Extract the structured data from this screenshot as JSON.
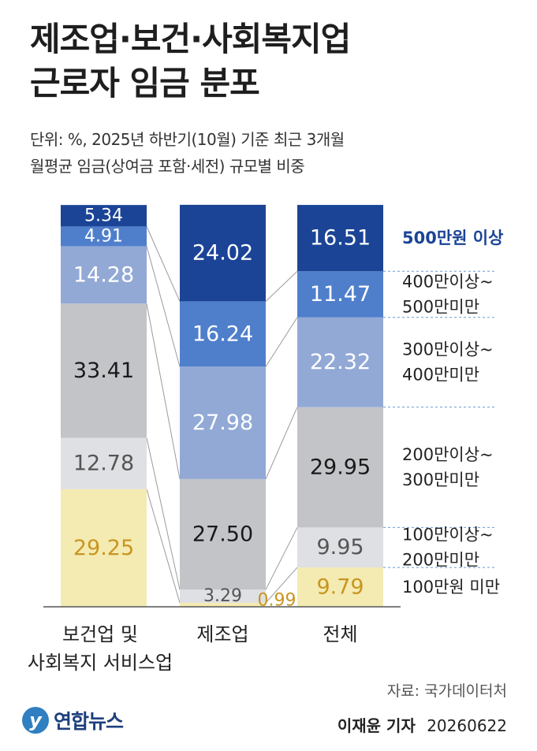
{
  "header": {
    "title_line1": "제조업·보건·사회복지업",
    "title_line2": "근로자 임금 분포",
    "subtitle_line1": "단위: %, 2025년 하반기(10월) 기준 최근 3개월",
    "subtitle_line2": "월평균 임금(상여금 포함·세전) 규모별 비중"
  },
  "chart_data": {
    "type": "bar",
    "stacked": true,
    "ylim": [
      0,
      100
    ],
    "grid": false,
    "legend_placement": "right",
    "categories": [
      [
        "보건업 및",
        "사회복지 서비스업"
      ],
      [
        "제조업"
      ],
      [
        "전체"
      ]
    ],
    "series": [
      {
        "name": "100만원 미만",
        "label_lines": [
          "100만원 미만"
        ],
        "color": "#f4ebb2",
        "text_color": "#c99521",
        "values": [
          29.25,
          0.99,
          9.79
        ]
      },
      {
        "name": "100만이상~200만미만",
        "label_lines": [
          "100만이상~",
          "200만미만"
        ],
        "color": "#dfe0e3",
        "text_color": "#555555",
        "values": [
          12.78,
          3.29,
          9.95
        ]
      },
      {
        "name": "200만이상~300만미만",
        "label_lines": [
          "200만이상~",
          "300만미만"
        ],
        "color": "#c3c4c8",
        "text_color": "#1a1a1a",
        "values": [
          33.41,
          27.5,
          29.95
        ]
      },
      {
        "name": "300만이상~400만미만",
        "label_lines": [
          "300만이상~",
          "400만미만"
        ],
        "color": "#92a9d6",
        "text_color": "#ffffff",
        "values": [
          14.28,
          27.98,
          22.32
        ]
      },
      {
        "name": "400만이상~500만미만",
        "label_lines": [
          "400만이상~",
          "500만미만"
        ],
        "color": "#4f7fcb",
        "text_color": "#ffffff",
        "values": [
          4.91,
          16.24,
          11.47
        ]
      },
      {
        "name": "500만원 이상",
        "label_lines": [
          "500만원 이상"
        ],
        "color": "#1b4496",
        "text_color": "#ffffff",
        "values": [
          5.34,
          24.02,
          16.51
        ]
      }
    ],
    "top_legend_color": "#1b4496"
  },
  "footer": {
    "source": "자료: 국가데이터처",
    "logo_text": "연합뉴스",
    "reporter": "이재윤 기자",
    "date": "20260622"
  }
}
